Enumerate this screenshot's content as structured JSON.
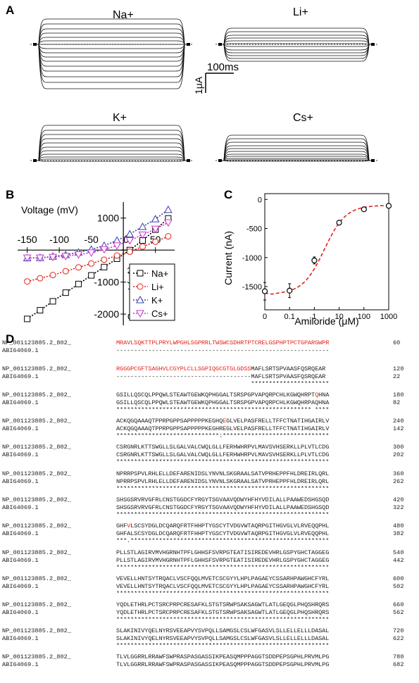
{
  "panels": {
    "A": {
      "letter": "A",
      "labels": {
        "na": "Na+",
        "li": "Li+",
        "k": "K+",
        "cs": "Cs+"
      },
      "scale": {
        "time": "100ms",
        "current": "1μA"
      }
    },
    "B": {
      "letter": "B"
    },
    "C": {
      "letter": "C"
    },
    "D": {
      "letter": "D"
    }
  },
  "chart_data": [
    {
      "type": "line",
      "panel": "B",
      "xlabel": "Voltage (mV)",
      "ylabel": "Current (nA)",
      "x_ticks": [
        -150,
        -100,
        -50,
        0,
        50
      ],
      "y_ticks": [
        1000,
        0,
        -1000,
        -2000
      ],
      "xlim": [
        -165,
        80
      ],
      "ylim": [
        -2350,
        1500
      ],
      "legend_position": "bottom-right",
      "series": [
        {
          "name": "Na+",
          "marker": "square",
          "color": "#000000",
          "x": [
            -150,
            -130,
            -110,
            -90,
            -70,
            -50,
            -30,
            -10,
            10,
            30,
            50,
            70
          ],
          "y": [
            -2150,
            -1880,
            -1600,
            -1330,
            -1060,
            -790,
            -530,
            -270,
            0,
            300,
            640,
            990
          ]
        },
        {
          "name": "Li+",
          "marker": "circle",
          "color": "#e2231a",
          "x": [
            -150,
            -130,
            -110,
            -90,
            -70,
            -50,
            -30,
            -10,
            10,
            30,
            50,
            70
          ],
          "y": [
            -980,
            -880,
            -780,
            -660,
            -540,
            -420,
            -300,
            -170,
            -50,
            110,
            260,
            430
          ]
        },
        {
          "name": "K+",
          "marker": "triangle-up",
          "color": "#3b3ba8",
          "x": [
            -150,
            -130,
            -110,
            -90,
            -70,
            -50,
            -30,
            -10,
            10,
            30,
            50,
            70
          ],
          "y": [
            -250,
            -240,
            -200,
            -150,
            -70,
            20,
            140,
            300,
            500,
            730,
            970,
            1260
          ]
        },
        {
          "name": "Cs+",
          "marker": "triangle-down",
          "color": "#cc33cc",
          "x": [
            -150,
            -130,
            -110,
            -90,
            -70,
            -50,
            -30,
            -10,
            10,
            30,
            50,
            70
          ],
          "y": [
            -240,
            -240,
            -220,
            -190,
            -140,
            -80,
            20,
            140,
            300,
            480,
            660,
            860
          ]
        }
      ]
    },
    {
      "type": "scatter",
      "panel": "C",
      "xlabel": "Amiloride (μM)",
      "ylabel": "Current (nA)",
      "x_scale": "log",
      "x_ticks": [
        "0",
        "0.1",
        "1",
        "10",
        "100",
        "1000"
      ],
      "y_ticks": [
        0,
        -500,
        -1000,
        -1500
      ],
      "ylim": [
        -1900,
        100
      ],
      "points": [
        {
          "x": 0,
          "y": -1580,
          "err": 150
        },
        {
          "x": 0.1,
          "y": -1570,
          "err": 120
        },
        {
          "x": 1,
          "y": -1050,
          "err": 60
        },
        {
          "x": 10,
          "y": -400,
          "err": 30
        },
        {
          "x": 100,
          "y": -170,
          "err": 20
        },
        {
          "x": 1000,
          "y": -110,
          "err": 15
        }
      ],
      "fit": {
        "style": "dashed",
        "color": "#e2231a"
      }
    }
  ],
  "alignment": {
    "rows": [
      {
        "top": "MRAVLSQKTTPLPRYLWPGHLSGPRRLTWSWCSDHRTPTCRELGSPHPTPCTGPARGWPR",
        "top_num": "60",
        "bottom": "------------------------------------------------------------",
        "bottom_num": "",
        "cons": "",
        "top_red": "all",
        "highlight": -1
      },
      {
        "top": "RGGGPCGFTSAGHVLCGYPLCLLSGPIQGCGTGLGDSSMAFLSRTSPVAASFQSRQEAR",
        "top_num": "120",
        "bottom": "--------------------------------------MAFLSRTSPVAASFQSRQEAR",
        "bottom_num": "22",
        "cons": "                                      **********************",
        "top_red": 38,
        "highlight": -1
      },
      {
        "top": "GSILLQSCQLPPQWLSTEAWTGEWKQPHGGALTSRSPGPVAPQRPCHLKGWQHRPTQHNA",
        "top_num": "180",
        "bottom": "GSILLQSCQLPPQWLSTEAWTGEWKQPHGGALTSRSPGPVAPQRPCHLKGWQHRPAQHNA",
        "bottom_num": "82",
        "cons": "******************************************************* ****",
        "top_red": 0,
        "highlight": 56
      },
      {
        "top": "ACKQGQAAAQTPPRPGPPSAPPPPPKEGHQEGLVELPASFRELLTFFCTNATIHGAIRLV",
        "top_num": "240",
        "bottom": "ACKQGQAAAQTPPRPGPPSAPPPPPKEGHREGLVELPASFRELLTFFCTNATIHGAIRLV",
        "bottom_num": "142",
        "cons": "*****************************:******************************",
        "top_red": 0,
        "highlight": 30
      },
      {
        "top": "CSRGNRLKTTSWGLLSLGALVALCWQLGLLFERHWHRPVLMAVSVHSERKLLPLVTLCDG",
        "top_num": "300",
        "bottom": "CSRGNRLKTTSWGLLSLGALVALCWQLGLLFERHWHRPVLMAVSVHSERKLLPLVTLCDG",
        "bottom_num": "202",
        "cons": "************************************************************",
        "top_red": 0,
        "highlight": -1
      },
      {
        "top": "NPRRPSPVLRHLELLDEFARENIDSLYNVNLSKGRAALSATVPRHEPPFHLDREIRLQRL",
        "top_num": "360",
        "bottom": "NPRRPSPVLRHLELLDEFARENIDSLYNVNLSKGRAALSATVPRHEPPFHLDREIRLQRL",
        "bottom_num": "262",
        "cons": "************************************************************",
        "top_red": 0,
        "highlight": -1
      },
      {
        "top": "SHSGSRVRVGFRLCNSTGGDCFYRGYTSGVAAVQDWYHFHYVDILALLPAAWEDSHGSQD",
        "top_num": "420",
        "bottom": "SHSGSRVRVGFRLCNSTGGDCFYRGYTSGVAAVQDWYHFHYVDILALLPAAWEDSHGSQD",
        "bottom_num": "322",
        "cons": "************************************************************",
        "top_red": 0,
        "highlight": -1
      },
      {
        "top": "GHFVLSCSYDGLDCQARQFRTFHHPTYGSCYTVDGVWTAQRPGITHGVGLVLRVEQQPHL",
        "top_num": "480",
        "bottom": "GHFALSCSYDGLDCQARQFRTFHHPTYGSCYTVDGVWTAQRPGITHGVGLVLRVEQQPHL",
        "bottom_num": "382",
        "cons": "***.********************************************************",
        "top_red": 0,
        "highlight": 3
      },
      {
        "top": "PLLSTLAGIRVMVHGRNHTPFLGHHSFSVRPGTEATISIREDEVHRLGSPYGHCTAGGEG",
        "top_num": "540",
        "bottom": "PLLSTLAGIRVMVHGRNHTPFLGHHSFSVRPGTEATISIREDEVHRLGSPYGHCTAGGEG",
        "bottom_num": "442",
        "cons": "************************************************************",
        "top_red": 0,
        "highlight": -1
      },
      {
        "top": "VEVELLHNTSYTRQACLVSCFQQLMVETCSCGYYLHPLPAGAEYCSSARHPAWGHCFYRL",
        "top_num": "600",
        "bottom": "VEVELLHNTSYTRQACLVSCFQQLMVETCSCGYYLHPLPAGAEYCSSARHPAWGHCFYRL",
        "bottom_num": "502",
        "cons": "************************************************************",
        "top_red": 0,
        "highlight": -1
      },
      {
        "top": "YQDLETHRLPCTSRCPRPCRESAFKLSTGTSRWPSAKSAGWTLATLGEQGLPHQSHRQRS",
        "top_num": "660",
        "bottom": "YQDLETHRLPCTSRCPRPCRESAFKLSTGTSRWPSAKSAGWTLATLGEQGLPHQSHRQRS",
        "bottom_num": "562",
        "cons": "************************************************************",
        "top_red": 0,
        "highlight": -1
      },
      {
        "top": "SLAKINIVYQELNYRSVEEAPVYSVPQLLSAMGSLCSLWFGASVLSLLELLELLLDASAL",
        "top_num": "720",
        "bottom": "SLAKINIVYQELNYRSVEEAPVYSVPQLLSAMGSLCSLWFGASVLSLLELLELLLDASAL",
        "bottom_num": "622",
        "cons": "************************************************************",
        "top_red": 0,
        "highlight": -1
      },
      {
        "top": "TLVLGGRRLRRAWFSWPRASPASGASSIKPEASQMPPPAGGTSDDPEPSGPHLPRVMLPG",
        "top_num": "780",
        "bottom": "TLVLGGRRLRRAWFSWPRASPASGASSIKPEASQMPPPAGGTSDDPEPSGPHLPRVMLPG",
        "bottom_num": "682",
        "cons": "",
        "top_red": 0,
        "highlight": -1
      }
    ],
    "names": {
      "top": "NP_001123885.2_802_",
      "bottom": "ABI64069.1"
    }
  }
}
